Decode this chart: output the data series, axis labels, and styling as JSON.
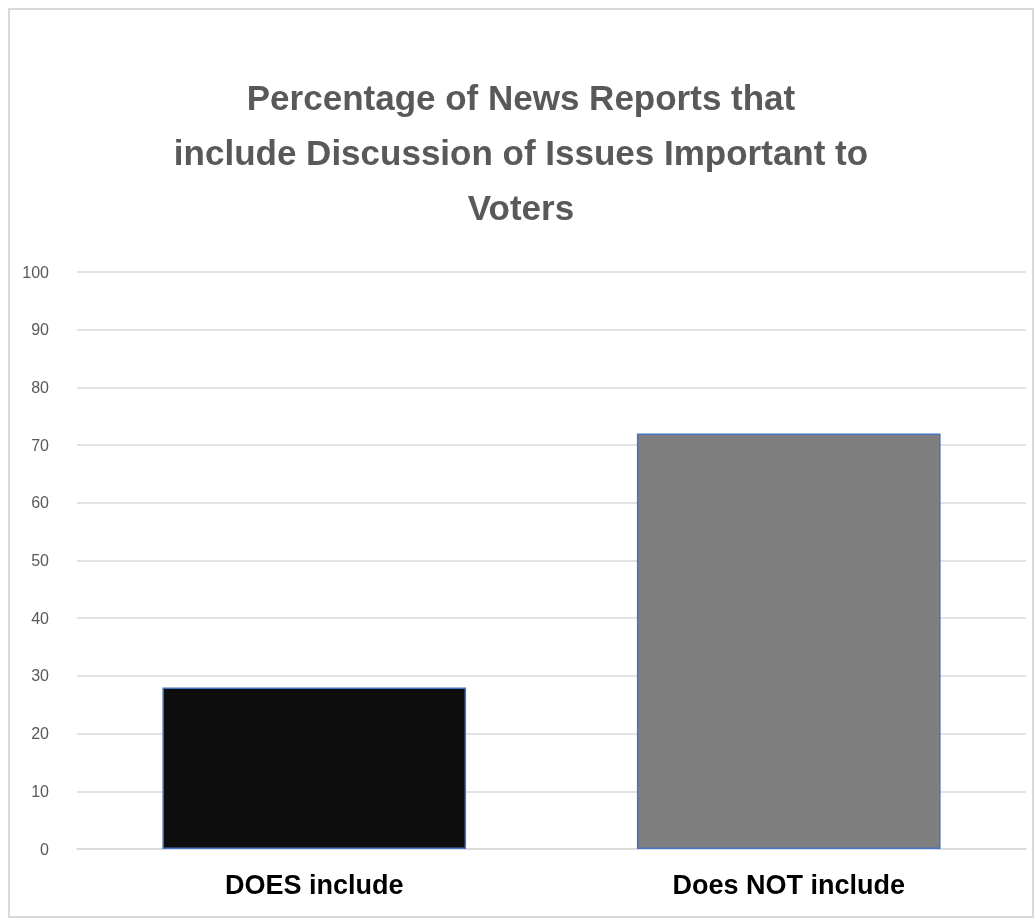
{
  "chart_data": {
    "type": "bar",
    "title": "Percentage of News Reports that\ninclude Discussion of Issues Important to\nVoters",
    "categories": [
      "DOES include",
      "Does NOT include"
    ],
    "values": [
      28,
      72
    ],
    "colors": [
      "#0d0d0d",
      "#7f7f7f"
    ],
    "ylim": [
      0,
      100
    ],
    "yticks": [
      0,
      10,
      20,
      30,
      40,
      50,
      60,
      70,
      80,
      90,
      100
    ],
    "grid": "y"
  }
}
